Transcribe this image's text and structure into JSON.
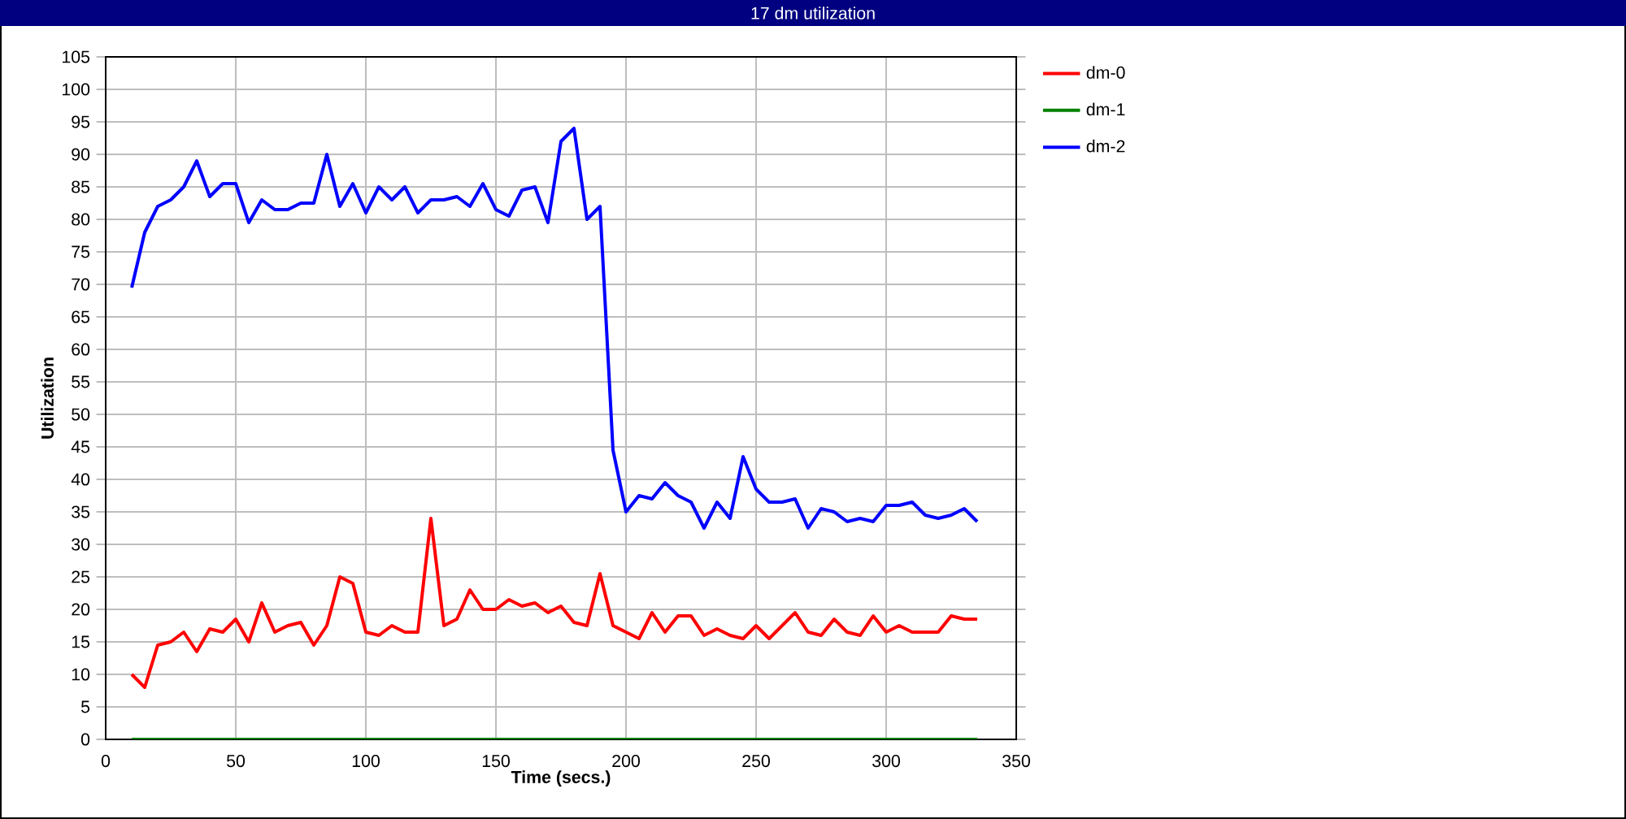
{
  "chart_data": {
    "type": "line",
    "title": "17 dm utilization",
    "xlabel": "Time (secs.)",
    "ylabel": "Utilization",
    "x": [
      10,
      15,
      20,
      25,
      30,
      35,
      40,
      45,
      50,
      55,
      60,
      65,
      70,
      75,
      80,
      85,
      90,
      95,
      100,
      105,
      110,
      115,
      120,
      125,
      130,
      135,
      140,
      145,
      150,
      155,
      160,
      165,
      170,
      175,
      180,
      185,
      190,
      195,
      200,
      205,
      210,
      215,
      220,
      225,
      230,
      235,
      240,
      245,
      250,
      255,
      260,
      265,
      270,
      275,
      280,
      285,
      290,
      295,
      300,
      305,
      310,
      315,
      320,
      325,
      330,
      335
    ],
    "series": [
      {
        "name": "dm-0",
        "color": "#ff0000",
        "values": [
          10,
          8,
          14.5,
          15,
          16.5,
          13.5,
          17,
          16.5,
          18.5,
          15,
          21,
          16.5,
          17.5,
          18,
          14.5,
          17.5,
          25,
          24,
          16.5,
          16,
          17.5,
          16.5,
          16.5,
          34,
          17.5,
          18.5,
          23,
          20,
          20,
          21.5,
          20.5,
          21,
          19.5,
          20.5,
          18,
          17.5,
          25.5,
          17.5,
          16.5,
          15.5,
          19.5,
          16.5,
          19,
          19,
          16,
          17,
          16,
          15.5,
          17.5,
          15.5,
          17.5,
          19.5,
          16.5,
          16,
          18.5,
          16.5,
          16,
          19,
          16.5,
          17.5,
          16.5,
          16.5,
          16.5,
          19,
          18.5,
          18.5
        ]
      },
      {
        "name": "dm-1",
        "color": "#008000",
        "values": [
          0,
          0,
          0,
          0,
          0,
          0,
          0,
          0,
          0,
          0,
          0,
          0,
          0,
          0,
          0,
          0,
          0,
          0,
          0,
          0,
          0,
          0,
          0,
          0,
          0,
          0,
          0,
          0,
          0,
          0,
          0,
          0,
          0,
          0,
          0,
          0,
          0,
          0,
          0,
          0,
          0,
          0,
          0,
          0,
          0,
          0,
          0,
          0,
          0,
          0,
          0,
          0,
          0,
          0,
          0,
          0,
          0,
          0,
          0,
          0,
          0,
          0,
          0,
          0,
          0,
          0
        ]
      },
      {
        "name": "dm-2",
        "color": "#0000ff",
        "values": [
          69.5,
          78,
          82,
          83,
          85,
          89,
          83.5,
          85.5,
          85.5,
          79.5,
          83,
          81.5,
          81.5,
          82.5,
          82.5,
          90,
          82,
          85.5,
          81,
          85,
          83,
          85,
          81,
          83,
          83,
          83.5,
          82,
          85.5,
          81.5,
          80.5,
          84.5,
          85,
          79.5,
          92,
          94,
          80,
          82,
          44.5,
          35,
          37.5,
          37,
          39.5,
          37.5,
          36.5,
          32.5,
          36.5,
          34,
          43.5,
          38.5,
          36.5,
          36.5,
          37,
          32.5,
          35.5,
          35,
          33.5,
          34,
          33.5,
          36,
          36,
          36.5,
          34.5,
          34,
          34.5,
          35.5,
          33.5
        ]
      }
    ],
    "xlim": [
      0,
      350
    ],
    "xticks": [
      0,
      50,
      100,
      150,
      200,
      250,
      300,
      350
    ],
    "ylim": [
      0,
      105
    ],
    "yticks": [
      0,
      5,
      10,
      15,
      20,
      25,
      30,
      35,
      40,
      45,
      50,
      55,
      60,
      65,
      70,
      75,
      80,
      85,
      90,
      95,
      100,
      105
    ],
    "grid": true,
    "legend": "top right",
    "marker": "none",
    "line_style": "solid"
  }
}
